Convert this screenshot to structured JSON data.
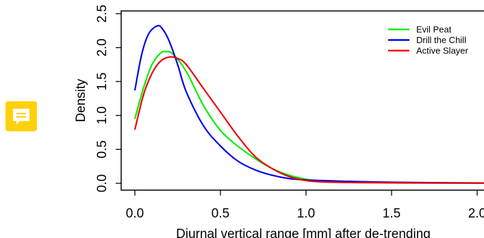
{
  "comment_icon": {
    "icon": "speech-bubble-icon",
    "color": "#ffd10a"
  },
  "chart_data": {
    "type": "line",
    "title": "",
    "xlabel": "Diurnal vertical range [mm] after de-trending",
    "ylabel": "Density",
    "xlim": [
      -0.1,
      2.07
    ],
    "ylim": [
      0,
      2.5
    ],
    "x_ticks": [
      0.0,
      0.5,
      1.0,
      1.5,
      2.0
    ],
    "x_tick_labels": [
      "0.0",
      "0.5",
      "1.0",
      "1.5",
      "2.0"
    ],
    "y_ticks": [
      0.0,
      0.5,
      1.0,
      1.5,
      2.0,
      2.5
    ],
    "y_tick_labels": [
      "0.0",
      "0.5",
      "1.0",
      "1.5",
      "2.0",
      "2.5"
    ],
    "grid": false,
    "legend_position": "top-right",
    "series": [
      {
        "name": "Evil Peat",
        "color": "#00ee00",
        "points": [
          [
            0.0,
            0.95
          ],
          [
            0.05,
            1.4
          ],
          [
            0.1,
            1.75
          ],
          [
            0.15,
            1.92
          ],
          [
            0.18,
            1.94
          ],
          [
            0.22,
            1.91
          ],
          [
            0.3,
            1.65
          ],
          [
            0.4,
            1.15
          ],
          [
            0.5,
            0.78
          ],
          [
            0.6,
            0.55
          ],
          [
            0.7,
            0.37
          ],
          [
            0.8,
            0.22
          ],
          [
            0.9,
            0.12
          ],
          [
            1.0,
            0.06
          ],
          [
            1.1,
            0.03
          ],
          [
            1.2,
            0.02
          ],
          [
            1.5,
            0.01
          ],
          [
            1.8,
            0.005
          ],
          [
            2.07,
            0.003
          ]
        ]
      },
      {
        "name": "Drill the Chill",
        "color": "#0000ee",
        "points": [
          [
            0.0,
            1.37
          ],
          [
            0.04,
            1.9
          ],
          [
            0.08,
            2.2
          ],
          [
            0.13,
            2.32
          ],
          [
            0.16,
            2.28
          ],
          [
            0.2,
            2.1
          ],
          [
            0.25,
            1.75
          ],
          [
            0.3,
            1.35
          ],
          [
            0.4,
            0.85
          ],
          [
            0.5,
            0.55
          ],
          [
            0.6,
            0.33
          ],
          [
            0.7,
            0.2
          ],
          [
            0.8,
            0.12
          ],
          [
            0.9,
            0.07
          ],
          [
            1.0,
            0.05
          ],
          [
            1.1,
            0.04
          ],
          [
            1.3,
            0.025
          ],
          [
            1.5,
            0.015
          ],
          [
            1.8,
            0.008
          ],
          [
            2.07,
            0.004
          ]
        ]
      },
      {
        "name": "Active Slayer",
        "color": "#ee0000",
        "points": [
          [
            0.0,
            0.79
          ],
          [
            0.05,
            1.3
          ],
          [
            0.1,
            1.62
          ],
          [
            0.15,
            1.8
          ],
          [
            0.2,
            1.86
          ],
          [
            0.25,
            1.84
          ],
          [
            0.3,
            1.75
          ],
          [
            0.4,
            1.4
          ],
          [
            0.5,
            1.05
          ],
          [
            0.6,
            0.7
          ],
          [
            0.7,
            0.4
          ],
          [
            0.8,
            0.22
          ],
          [
            0.9,
            0.1
          ],
          [
            1.0,
            0.04
          ],
          [
            1.1,
            0.02
          ],
          [
            1.3,
            0.01
          ],
          [
            1.6,
            0.005
          ],
          [
            2.07,
            0.002
          ]
        ]
      }
    ]
  }
}
